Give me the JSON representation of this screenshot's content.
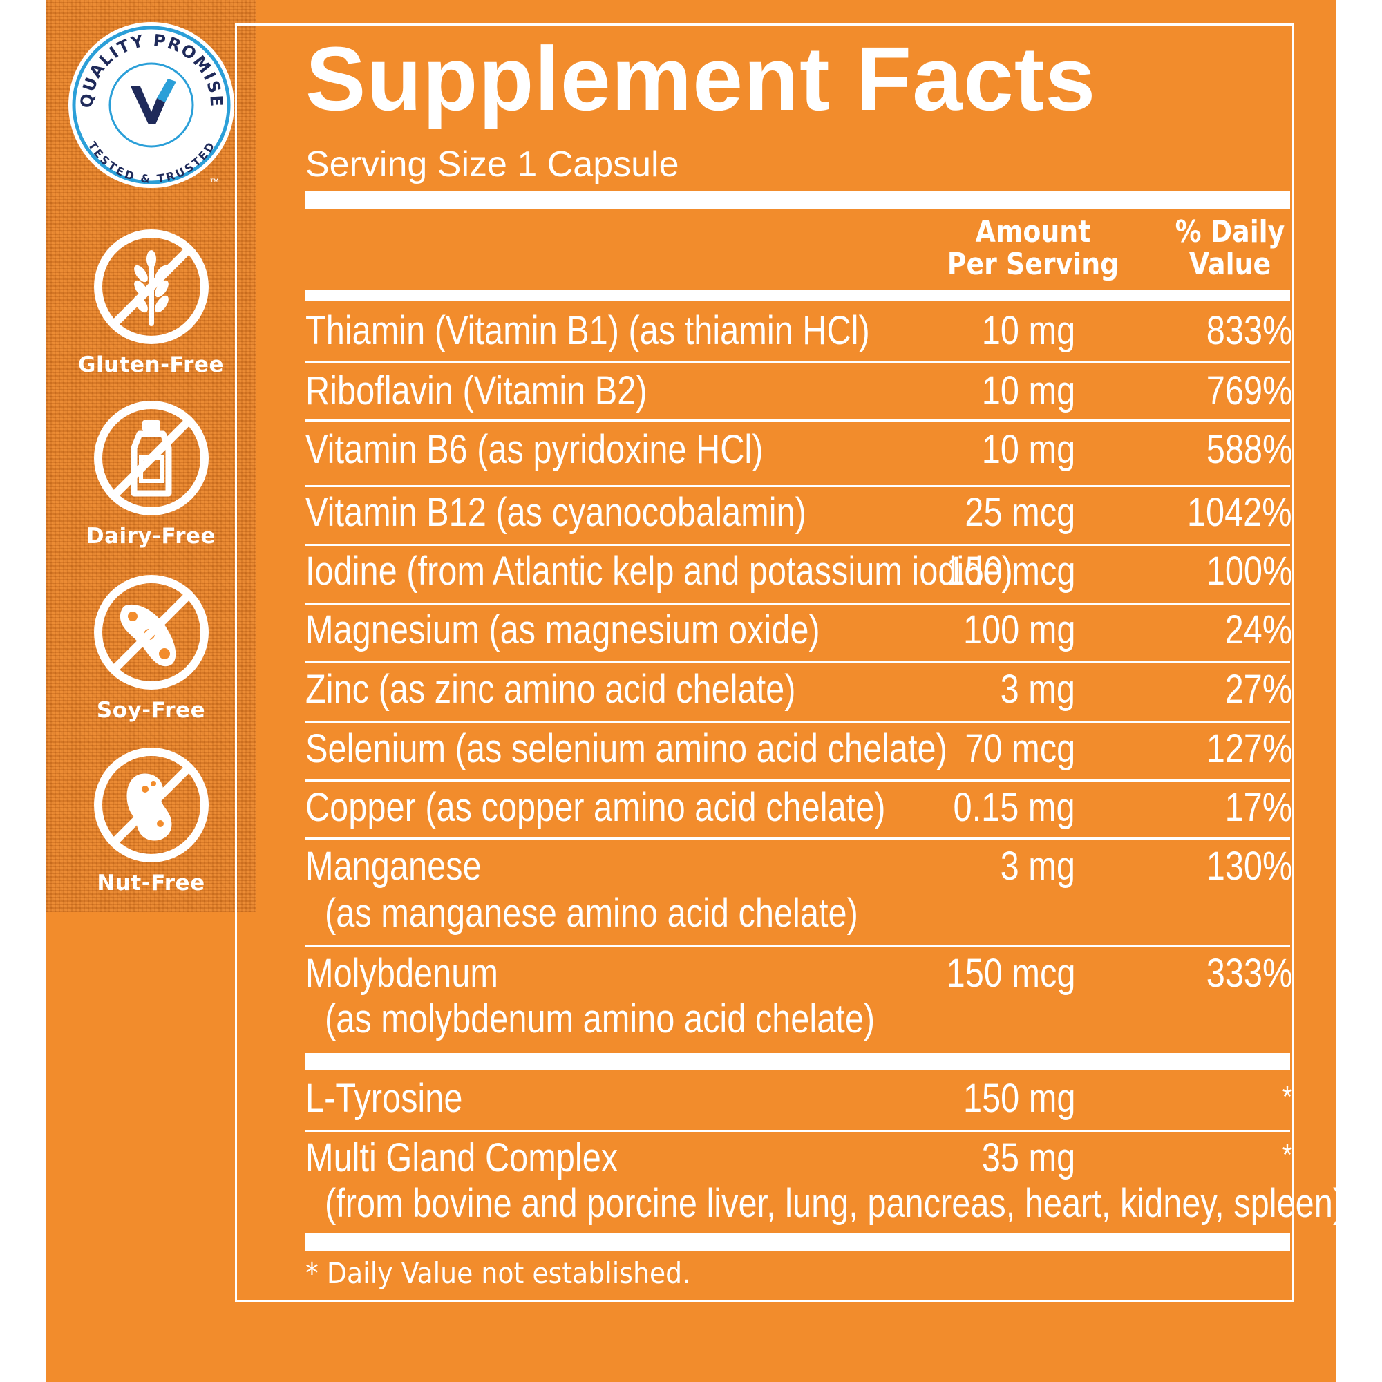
{
  "badge": {
    "arc_top": "QUALITY PROMISE",
    "arc_bottom": "TESTED & TRUSTED",
    "tm": "™",
    "color_ring": "#2b9fd8",
    "color_navy": "#1f2a5a"
  },
  "icons": [
    {
      "icon": "wheat-icon",
      "label": "Gluten-Free"
    },
    {
      "icon": "milk-bottle-icon",
      "label": "Dairy-Free"
    },
    {
      "icon": "soybean-icon",
      "label": "Soy-Free"
    },
    {
      "icon": "peanut-icon",
      "label": "Nut-Free"
    }
  ],
  "facts": {
    "title": "Supplement Facts",
    "serving": "Serving Size 1 Capsule",
    "head_amount_1": "Amount",
    "head_amount_2": "Per Serving",
    "head_dv_1": "% Daily",
    "head_dv_2": "Value",
    "rows": [
      {
        "name": "Thiamin (Vitamin B1) (as thiamin HCl)",
        "amount": "10 mg",
        "dv": "833%"
      },
      {
        "name": "Riboflavin (Vitamin B2)",
        "amount": "10 mg",
        "dv": "769%"
      },
      {
        "name": "Vitamin B6 (as pyridoxine HCl)",
        "amount": "10 mg",
        "dv": "588%"
      },
      {
        "name": "Vitamin B12 (as cyanocobalamin)",
        "amount": "25 mcg",
        "dv": "1042%"
      },
      {
        "name": "Iodine (from Atlantic kelp and potassium iodide)",
        "amount": "150 mcg",
        "dv": "100%"
      },
      {
        "name": "Magnesium (as magnesium oxide)",
        "amount": "100 mg",
        "dv": "24%"
      },
      {
        "name": "Zinc (as zinc amino acid chelate)",
        "amount": "3 mg",
        "dv": "27%"
      },
      {
        "name": "Selenium (as selenium amino acid chelate)",
        "amount": "70 mcg",
        "dv": "127%"
      },
      {
        "name": "Copper (as copper amino acid chelate)",
        "amount": "0.15 mg",
        "dv": "17%"
      },
      {
        "name": "Manganese",
        "sub": "(as manganese amino acid chelate)",
        "amount": "3 mg",
        "dv": "130%"
      },
      {
        "name": "Molybdenum",
        "sub": "(as molybdenum amino acid chelate)",
        "amount": "150 mcg",
        "dv": "333%"
      },
      {
        "name": "L-Tyrosine",
        "amount": "150 mg",
        "dv": "*"
      },
      {
        "name": "Multi Gland Complex",
        "sub": "(from bovine and porcine liver, lung, pancreas, heart, kidney, spleen)",
        "amount": "35 mg",
        "dv": "*"
      }
    ],
    "footnote": "* Daily Value not established."
  },
  "colors": {
    "orange": "#f28c2c",
    "white": "#ffffff"
  }
}
